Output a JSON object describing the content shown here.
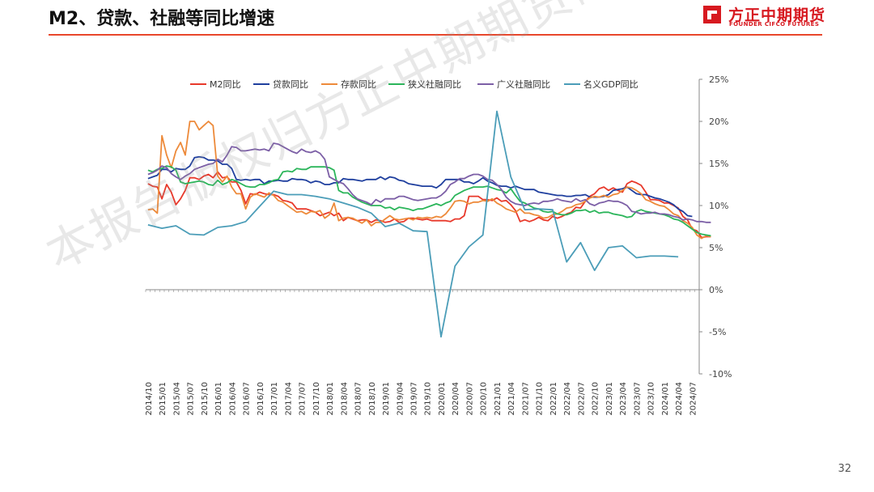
{
  "header": {
    "title": "M2、贷款、社融等同比增速",
    "logo_text": "方正中期期货",
    "logo_subtext": "FOUNDER CIFCO FUTURES"
  },
  "watermark": "本报告版权归方正中期期货研究院所有",
  "page_number": "32",
  "colors": {
    "accent": "#e8472c",
    "brand": "#d71920"
  },
  "chart_data": {
    "type": "line",
    "title": "",
    "xlabel": "",
    "ylabel": "",
    "y_axis_position": "right",
    "ylim": [
      -10,
      25
    ],
    "yticks": [
      "25%",
      "20%",
      "15%",
      "10%",
      "5%",
      "0%",
      "-5%",
      "-10%"
    ],
    "ytick_values": [
      25,
      20,
      15,
      10,
      5,
      0,
      -5,
      -10
    ],
    "xticks": [
      "2014/10",
      "2015/01",
      "2015/04",
      "2015/07",
      "2015/10",
      "2016/01",
      "2016/04",
      "2016/07",
      "2016/10",
      "2017/01",
      "2017/04",
      "2017/07",
      "2017/10",
      "2018/01",
      "2018/04",
      "2018/07",
      "2018/10",
      "2019/01",
      "2019/04",
      "2019/07",
      "2019/10",
      "2020/01",
      "2020/04",
      "2020/07",
      "2020/10",
      "2021/01",
      "2021/04",
      "2021/07",
      "2021/10",
      "2022/01",
      "2022/04",
      "2022/07",
      "2022/10",
      "2023/01",
      "2023/04",
      "2023/07",
      "2023/10",
      "2024/01",
      "2024/04",
      "2024/07"
    ],
    "grid": false,
    "legend_position": "top",
    "series": [
      {
        "name": "M2同比",
        "color": "#e8392b",
        "frequency": "monthly",
        "start": "2014/10",
        "values": [
          12.6,
          12.3,
          12.2,
          10.8,
          12.5,
          11.6,
          10.1,
          10.8,
          11.8,
          13.3,
          13.3,
          13.1,
          13.5,
          13.7,
          13.3,
          14.0,
          13.3,
          13.4,
          12.8,
          12.8,
          11.8,
          10.2,
          11.4,
          11.3,
          11.6,
          11.4,
          11.3,
          11.3,
          11.1,
          10.6,
          10.5,
          10.3,
          9.6,
          9.6,
          9.6,
          9.4,
          9.2,
          8.8,
          9.0,
          9.2,
          8.8,
          9.1,
          8.2,
          8.6,
          8.4,
          8.2,
          8.3,
          8.3,
          8.0,
          8.3,
          8.2,
          8.0,
          8.1,
          8.4,
          8.0,
          8.1,
          8.5,
          8.5,
          8.4,
          8.3,
          8.4,
          8.2,
          8.2,
          8.2,
          8.2,
          8.1,
          8.4,
          8.4,
          8.8,
          11.1,
          11.1,
          11.1,
          10.7,
          10.7,
          10.6,
          10.9,
          10.5,
          10.6,
          10.1,
          9.4,
          8.1,
          8.3,
          8.1,
          8.3,
          8.6,
          8.3,
          8.2,
          8.7,
          8.5,
          8.7,
          9.0,
          9.2,
          9.8,
          9.7,
          10.5,
          11.1,
          11.4,
          12.0,
          12.2,
          11.8,
          12.1,
          11.8,
          11.6,
          12.6,
          12.9,
          12.7,
          12.4,
          11.6,
          10.7,
          10.7,
          10.6,
          10.3,
          10.3,
          10.0,
          9.7,
          8.7,
          8.3,
          7.2,
          7.0,
          6.2,
          6.3,
          6.3
        ]
      },
      {
        "name": "贷款同比",
        "color": "#1f3f9e",
        "frequency": "monthly",
        "start": "2014/10",
        "values": [
          13.2,
          13.4,
          13.6,
          14.3,
          14.3,
          14.0,
          14.4,
          14.3,
          14.3,
          14.7,
          15.7,
          15.8,
          15.7,
          15.4,
          15.4,
          15.3,
          14.9,
          14.9,
          14.4,
          13.1,
          13.0,
          13.1,
          13.0,
          13.1,
          13.1,
          12.6,
          12.9,
          12.9,
          13.0,
          12.9,
          12.9,
          13.2,
          13.1,
          13.1,
          13.0,
          12.7,
          12.9,
          12.8,
          12.5,
          12.5,
          12.7,
          12.7,
          13.2,
          13.1,
          13.1,
          13.0,
          12.9,
          13.1,
          13.1,
          13.1,
          13.4,
          13.1,
          13.4,
          13.3,
          13.0,
          12.9,
          12.6,
          12.5,
          12.4,
          12.3,
          12.3,
          12.3,
          12.1,
          12.5,
          13.1,
          13.1,
          13.1,
          13.1,
          12.8,
          12.8,
          12.6,
          12.9,
          13.3,
          12.9,
          12.7,
          12.4,
          12.3,
          12.3,
          12.1,
          12.3,
          12.1,
          11.9,
          11.9,
          11.9,
          11.6,
          11.5,
          11.4,
          11.3,
          11.2,
          11.2,
          11.1,
          11.1,
          11.2,
          11.2,
          11.3,
          11.0,
          11.0,
          11.0,
          11.1,
          11.3,
          11.8,
          11.9,
          12.0,
          12.2,
          11.8,
          11.4,
          11.3,
          11.3,
          11.1,
          10.9,
          10.8,
          10.6,
          10.4,
          10.1,
          9.6,
          9.3,
          8.8,
          8.7
        ]
      },
      {
        "name": "存款同比",
        "color": "#ed8a3a",
        "frequency": "monthly",
        "start": "2014/10",
        "values": [
          9.5,
          9.6,
          9.1,
          18.3,
          16.0,
          14.5,
          16.5,
          17.5,
          16.0,
          20.0,
          20.0,
          19.0,
          19.5,
          20.0,
          19.5,
          13.5,
          12.8,
          13.5,
          12.2,
          11.4,
          11.4,
          9.6,
          11.0,
          11.4,
          11.2,
          11.0,
          11.5,
          11.2,
          10.6,
          10.4,
          10.0,
          9.6,
          9.2,
          9.3,
          9.0,
          9.3,
          9.2,
          9.4,
          8.5,
          8.9,
          10.3,
          8.2,
          8.5,
          8.6,
          8.5,
          8.2,
          7.9,
          8.3,
          7.6,
          8.0,
          8.0,
          8.4,
          8.8,
          8.4,
          8.3,
          8.4,
          8.5,
          8.3,
          8.6,
          8.5,
          8.6,
          8.5,
          8.7,
          8.6,
          9.0,
          9.7,
          10.5,
          10.6,
          10.5,
          10.2,
          10.4,
          10.4,
          10.6,
          10.5,
          10.8,
          10.3,
          10.0,
          9.6,
          9.4,
          9.2,
          9.6,
          9.1,
          9.1,
          8.9,
          8.8,
          8.5,
          8.6,
          8.9,
          9.0,
          9.3,
          9.7,
          9.8,
          10.1,
          10.2,
          10.5,
          10.9,
          11.1,
          11.0,
          11.2,
          11.0,
          11.3,
          11.4,
          11.8,
          12.2,
          12.1,
          11.8,
          11.4,
          10.7,
          10.5,
          10.2,
          10.0,
          9.9,
          9.5,
          9.0,
          8.8,
          8.2,
          7.9,
          7.4,
          6.5,
          6.1,
          6.4,
          6.3
        ]
      },
      {
        "name": "狭义社融同比",
        "color": "#2bb55a",
        "frequency": "monthly",
        "start": "2014/10",
        "values": [
          14.2,
          14.0,
          14.3,
          14.4,
          14.7,
          14.6,
          14.2,
          12.8,
          12.6,
          12.7,
          12.8,
          12.9,
          12.8,
          12.5,
          12.4,
          13.0,
          12.5,
          12.7,
          13.1,
          12.9,
          12.6,
          12.3,
          12.2,
          12.2,
          12.5,
          12.5,
          12.7,
          13.0,
          13.1,
          14.0,
          14.1,
          14.0,
          14.4,
          14.3,
          14.3,
          14.6,
          14.6,
          14.6,
          14.6,
          14.5,
          14.2,
          11.8,
          11.5,
          11.5,
          11.0,
          10.7,
          10.4,
          10.2,
          10.0,
          10.0,
          10.0,
          9.7,
          9.8,
          9.5,
          9.8,
          9.7,
          9.6,
          9.4,
          9.6,
          9.6,
          9.8,
          10.0,
          10.2,
          10.0,
          10.3,
          10.5,
          11.2,
          11.5,
          11.8,
          12.0,
          12.2,
          12.2,
          12.2,
          12.3,
          12.1,
          11.9,
          11.8,
          11.5,
          12.0,
          11.2,
          10.5,
          10.3,
          10.0,
          9.7,
          9.6,
          9.3,
          9.2,
          9.3,
          9.0,
          8.9,
          8.9,
          9.1,
          9.4,
          9.4,
          9.5,
          9.2,
          9.4,
          9.1,
          9.2,
          9.2,
          9.0,
          8.9,
          8.8,
          8.6,
          8.7,
          9.3,
          9.5,
          9.3,
          9.2,
          9.1,
          9.0,
          8.9,
          8.7,
          8.4,
          8.3,
          8.0,
          7.6,
          7.2,
          6.8,
          6.6,
          6.5,
          6.4
        ]
      },
      {
        "name": "广义社融同比",
        "color": "#7c5fa6",
        "frequency": "monthly",
        "start": "2014/10",
        "values": [
          13.7,
          13.9,
          14.2,
          14.7,
          14.5,
          13.8,
          13.4,
          13.1,
          13.5,
          13.8,
          14.3,
          14.5,
          14.7,
          14.9,
          15.0,
          15.5,
          15.2,
          16.0,
          17.0,
          16.9,
          16.5,
          16.5,
          16.6,
          16.7,
          16.6,
          16.7,
          16.5,
          17.4,
          17.3,
          17.0,
          16.7,
          16.4,
          16.2,
          16.7,
          16.4,
          16.3,
          16.5,
          16.2,
          15.5,
          13.4,
          13.1,
          12.8,
          12.6,
          12.0,
          11.3,
          10.8,
          10.6,
          10.4,
          10.1,
          10.7,
          10.4,
          10.8,
          10.8,
          10.8,
          11.1,
          11.1,
          10.9,
          10.7,
          10.6,
          10.7,
          10.8,
          10.9,
          10.9,
          11.2,
          11.7,
          12.5,
          12.8,
          13.2,
          13.2,
          13.5,
          13.7,
          13.7,
          13.5,
          13.1,
          13.0,
          12.5,
          11.9,
          11.0,
          10.5,
          10.2,
          10.1,
          10.0,
          10.2,
          10.3,
          10.2,
          10.5,
          10.5,
          10.6,
          10.8,
          10.6,
          10.5,
          10.4,
          10.8,
          10.5,
          10.7,
          10.2,
          10.0,
          10.3,
          10.4,
          10.6,
          10.5,
          10.5,
          10.3,
          10.0,
          9.3,
          9.2,
          9.0,
          9.1,
          9.1,
          9.2,
          9.0,
          9.0,
          8.9,
          8.7,
          8.6,
          8.3,
          8.4,
          8.3,
          8.1,
          8.1,
          8.0,
          8.0
        ]
      },
      {
        "name": "名义GDP同比",
        "color": "#4b9db8",
        "frequency": "quarterly",
        "start": "2014/10",
        "values": [
          7.7,
          7.3,
          7.6,
          6.6,
          6.5,
          7.4,
          7.6,
          8.1,
          9.9,
          11.7,
          11.3,
          11.3,
          11.1,
          10.8,
          10.3,
          9.8,
          9.1,
          7.5,
          7.9,
          7.0,
          6.9,
          -5.6,
          2.8,
          5.1,
          6.5,
          21.2,
          13.4,
          9.5,
          9.6,
          9.5,
          3.3,
          5.6,
          2.3,
          5.0,
          5.2,
          3.8,
          4.0,
          4.0,
          3.9
        ]
      }
    ]
  }
}
